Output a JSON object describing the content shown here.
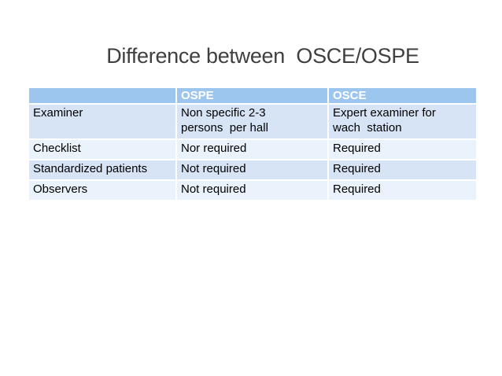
{
  "slide": {
    "title": "Difference between  OSCE/OSPE"
  },
  "table": {
    "columns": [
      "",
      "OSPE",
      "OSCE"
    ],
    "rows": [
      {
        "cells": [
          "Examiner",
          "Non specific 2-3\npersons  per hall",
          "Expert examiner for\nwach  station"
        ]
      },
      {
        "cells": [
          "Checklist",
          "Nor required",
          "Required"
        ]
      },
      {
        "cells": [
          "Standardized patients",
          "Not required",
          "Required"
        ]
      },
      {
        "cells": [
          "Observers",
          "Not required",
          "Required"
        ]
      }
    ]
  },
  "colors": {
    "header_bg": "#9dc6ee",
    "row_band_light_blue": "#d7e4f5",
    "row_band_pale_blue": "#eaf2fb",
    "header_text": "#ffffff",
    "body_text": "#000000",
    "title_text": "#3f3f3f",
    "background": "#ffffff"
  }
}
